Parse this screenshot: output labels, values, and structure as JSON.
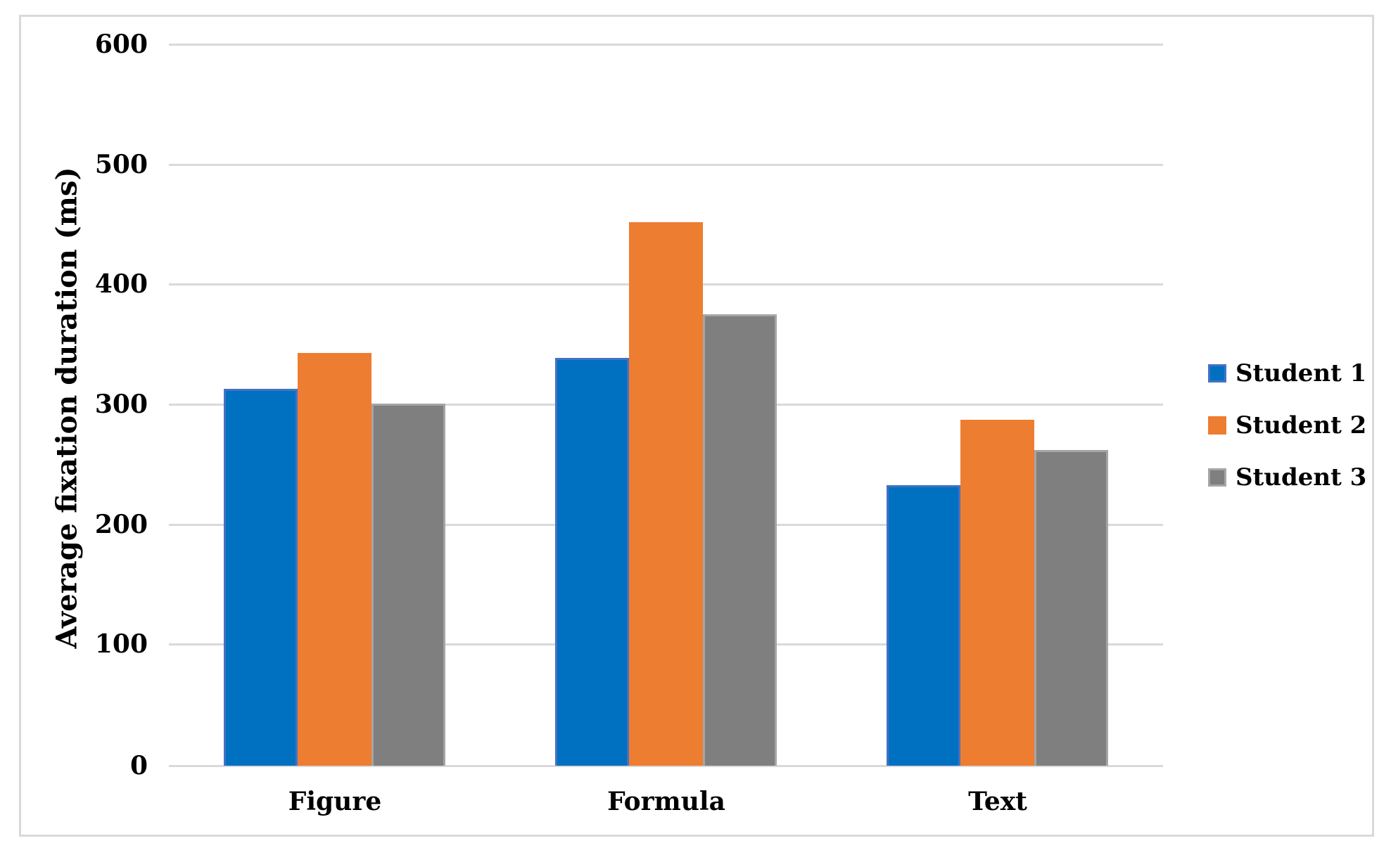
{
  "chart_data": {
    "type": "bar",
    "title": "",
    "categories": [
      "Figure",
      "Formula",
      "Text"
    ],
    "series": [
      {
        "name": "Student 1",
        "values": [
          314,
          340,
          234
        ],
        "fill": "#0070C0",
        "border": "#4472C4"
      },
      {
        "name": "Student 2",
        "values": [
          344,
          453,
          288
        ],
        "fill": "#ED7D31",
        "border": "#ED7D31"
      },
      {
        "name": "Student 3",
        "values": [
          302,
          376,
          263
        ],
        "fill": "#7F7F7F",
        "border": "#A5A5A5"
      }
    ],
    "xlabel": "",
    "ylabel": "Average fixation duration (ms)",
    "ylim": [
      0,
      600
    ],
    "yticks": [
      0,
      100,
      200,
      300,
      400,
      500,
      600
    ],
    "grid": true,
    "legend_position": "right",
    "colors": {
      "gridline": "#D9D9D9",
      "chart_border": "#D9D9D9",
      "text": "#000000",
      "background": "#FFFFFF"
    }
  }
}
